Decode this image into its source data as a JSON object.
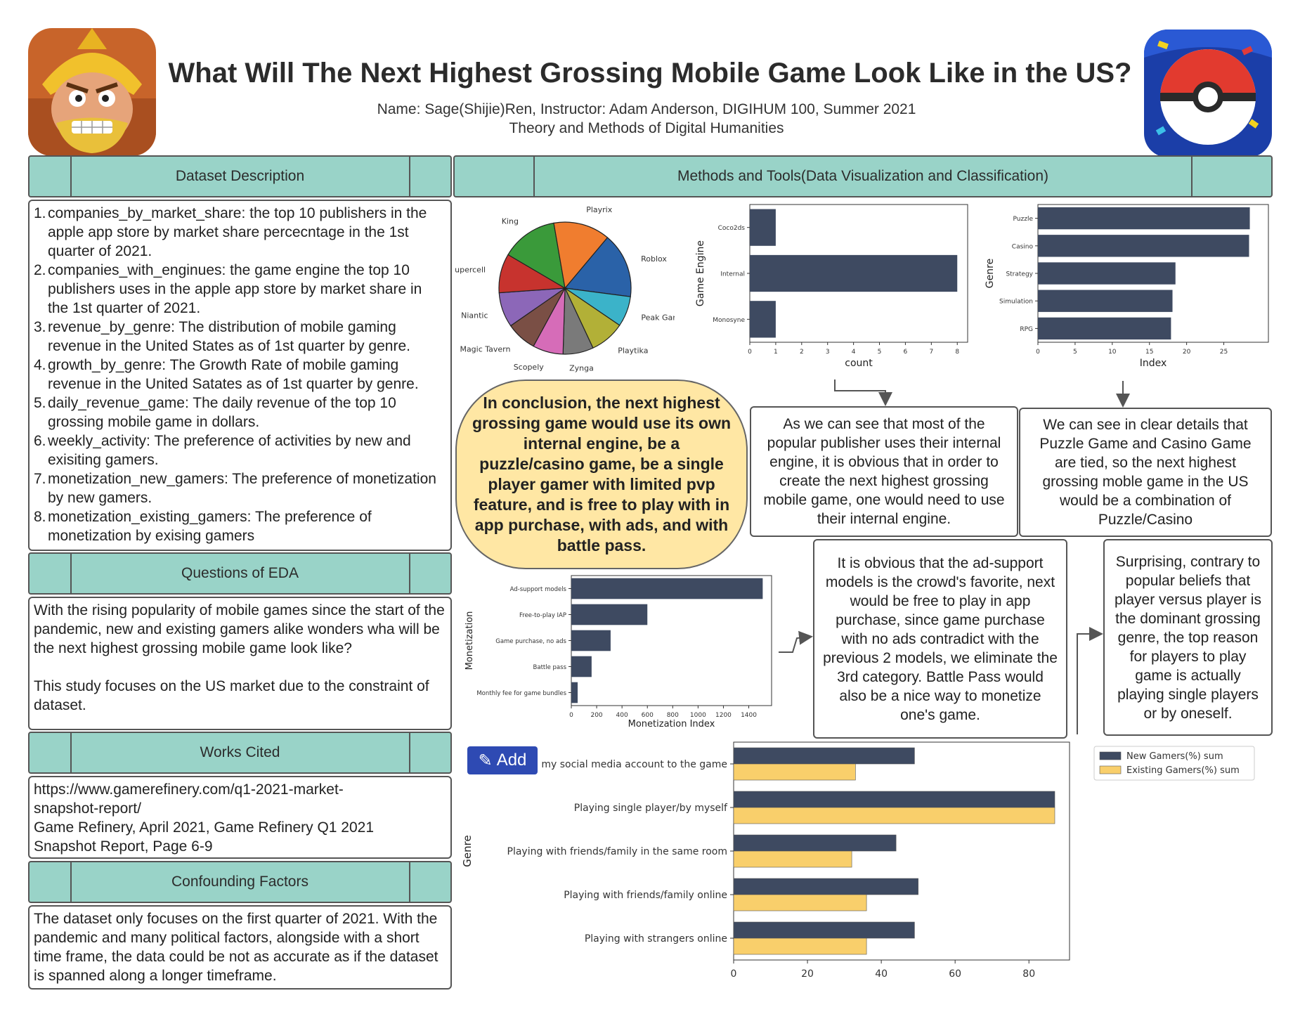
{
  "header": {
    "title": "What Will The Next Highest Grossing Mobile Game Look Like in the US?",
    "subtitle_line1": "Name: Sage(Shijie)Ren, Instructor: Adam Anderson, DIGIHUM 100, Summer 2021",
    "subtitle_line2": "Theory and Methods of Digital Humanities"
  },
  "sections": {
    "dataset": "Dataset Description",
    "methods": "Methods and Tools(Data Visualization and Classification)",
    "eda": "Questions of EDA",
    "works": "Works Cited",
    "confounding": "Confounding Factors"
  },
  "dataset_items": [
    "companies_by_market_share: the top 10 publishers in the apple app store by market share percecntage in the 1st quarter of 2021.",
    "companies_with_enginues: the game engine the top 10 publishers uses in the apple app store by market share in the 1st quarter of 2021.",
    "revenue_by_genre: The distribution of mobile gaming revenue in the United States as of 1st quarter by genre.",
    "growth_by_genre: The Growth Rate of mobile gaming revenue in the United Satates as of 1st quarter by genre.",
    "daily_revenue_game: The daily revenue of the top 10 grossing mobile game in dollars.",
    "weekly_activity: The preference of activities by new and exisiting gamers.",
    "monetization_new_gamers: The preference of monetization by new gamers.",
    "monetization_existing_gamers: The preference of monetization by exising gamers"
  ],
  "eda": {
    "p1": "With the rising popularity of mobile games since the start of the pandemic, new and existing gamers alike wonders wha will be the next highest grossing mobile game look like?",
    "p2": "This study focuses on the US market due to the constraint of dataset."
  },
  "works_cited": {
    "line1": "https://www.gamerefinery.com/q1-2021-market-",
    "line2": "snapshot-report/",
    "line3": "Game Refinery, April 2021, Game Refinery Q1 2021",
    "line4": "Snapshot Report, Page 6-9"
  },
  "confounding": "The dataset only focuses on the first quarter of 2021. With the pandemic and many political factors, alongside with a short time frame, the data could be not as accurate as if the dataset is spanned along a longer timeframe.",
  "conclusion": "In conclusion, the next highest grossing game would use its own internal engine, be a puzzle/casino game, be a single player gamer with limited pvp feature, and is free to play with in app purchase, with ads, and with battle pass.",
  "callouts": {
    "engine": "As we can see that most of the popular publisher uses their internal engine, it is obvious that in order to create the next highest grossing mobile game, one would need to use their internal engine.",
    "genre": "We can see in clear details that Puzzle Game and Casino Game are tied, so the next highest grossing moble game in the US would be a combination of Puzzle/Casino",
    "monetization": "It is obvious that the ad-support models is the crowd's favorite, next would be free to play in app purchase, since game purchase with no ads contradict with the previous 2 models, we eliminate the 3rd category. Battle Pass would also be a nice way to monetize one's game.",
    "activity": "Surprising, contrary to popular beliefs that player versus player is the dominant grossing genre, the top reason for players to play game is actually playing single players or by oneself."
  },
  "add_button": {
    "label": "Add"
  },
  "colors": {
    "header_bar": "#99d3c8",
    "bar_navy": "#3e4a61",
    "bar_gold": "#f9cf6b",
    "conclusion_bg": "#ffe7a4",
    "add_button": "#2e4ab3"
  },
  "chart_data": [
    {
      "type": "pie",
      "categories": [
        "Roblox",
        "Peak Games",
        "Playtika",
        "Zynga",
        "Scopely",
        "Magic Tavern",
        "Niantic",
        "Supercell",
        "King",
        "Playrix"
      ],
      "values": [
        15,
        7,
        8,
        7,
        7,
        7,
        8,
        9,
        13,
        13
      ],
      "colors": [
        "#2a62a8",
        "#3bb3c9",
        "#b2b037",
        "#7a7a7a",
        "#d66cb8",
        "#7a4f45",
        "#8c67b8",
        "#c7332e",
        "#3a9a3a",
        "#f07d2f"
      ]
    },
    {
      "type": "bar",
      "orientation": "horizontal",
      "categories": [
        "Coco2ds",
        "Internal",
        "Monosyne"
      ],
      "values": [
        1,
        8,
        1
      ],
      "xlabel": "count",
      "ylabel": "Game Engine",
      "xlim": [
        0,
        8.4
      ],
      "xticks": [
        "0",
        "1",
        "2",
        "3",
        "4",
        "5",
        "6",
        "7",
        "8"
      ]
    },
    {
      "type": "bar",
      "orientation": "horizontal",
      "categories": [
        "Puzzle",
        "Casino",
        "Strategy",
        "Simulation",
        "RPG"
      ],
      "values": [
        28.5,
        28.4,
        18.5,
        18.1,
        17.9
      ],
      "xlabel": "Index",
      "ylabel": "Genre",
      "xlim": [
        0,
        31
      ],
      "xticks": [
        "0",
        "5",
        "10",
        "15",
        "20",
        "25"
      ]
    },
    {
      "type": "bar",
      "orientation": "horizontal",
      "categories": [
        "Ad-support models",
        "Free-to-play IAP",
        "Game purchase, no ads",
        "Battle pass",
        "Monthly fee for game bundles"
      ],
      "values": [
        1510,
        600,
        310,
        160,
        50
      ],
      "xlabel": "Monetization Index",
      "ylabel": "Monetization",
      "xlim": [
        0,
        1580
      ],
      "xticks": [
        "0",
        "200",
        "400",
        "600",
        "800",
        "1000",
        "1200",
        "1400"
      ]
    },
    {
      "type": "bar",
      "orientation": "horizontal",
      "categories": [
        "Connecting my social media account to the game",
        "Playing single player/by myself",
        "Playing with friends/family in the same room",
        "Playing with friends/family online",
        "Playing with strangers online"
      ],
      "series": [
        {
          "name": "New Gamers(%) sum",
          "values": [
            49,
            87,
            44,
            50,
            49
          ]
        },
        {
          "name": "Existing Gamers(%) sum",
          "values": [
            33,
            87,
            32,
            36,
            36
          ]
        }
      ],
      "ylabel": "Genre",
      "xlim": [
        0,
        91
      ],
      "xticks": [
        "0",
        "20",
        "40",
        "60",
        "80"
      ]
    }
  ]
}
